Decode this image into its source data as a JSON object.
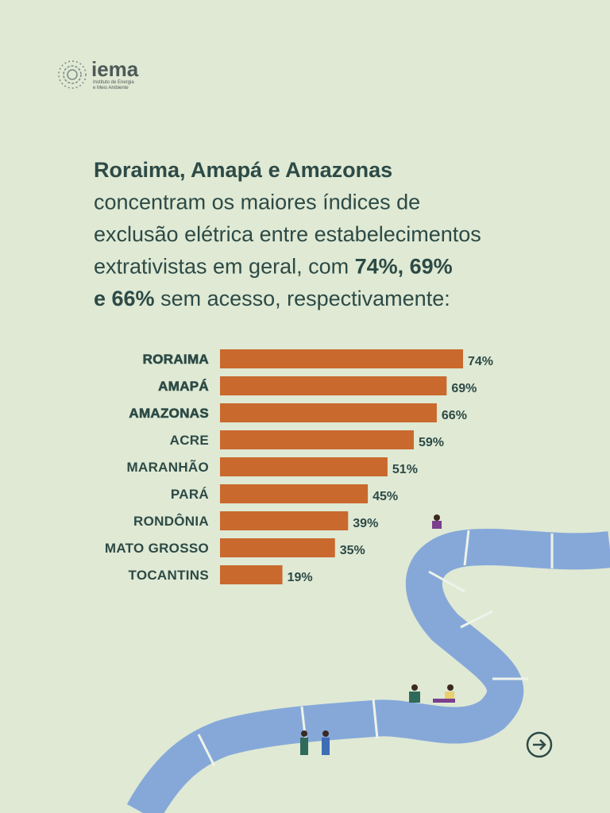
{
  "logo": {
    "name": "iema",
    "subtitle_lines": [
      "Instituto de Energia",
      "e Meio Ambiente"
    ]
  },
  "headline": [
    [
      {
        "text": "Roraima, Amapá e Amazonas",
        "bold": true
      }
    ],
    [
      {
        "text": "concentram os maiores índices de",
        "bold": false
      }
    ],
    [
      {
        "text": "exclusão elétrica entre estabelecimentos",
        "bold": false
      }
    ],
    [
      {
        "text": "extrativistas em geral, com ",
        "bold": false
      },
      {
        "text": "74%, 69%",
        "bold": true
      }
    ],
    [
      {
        "text": "e 66%",
        "bold": true
      },
      {
        "text": " sem acesso, respectivamente:",
        "bold": false
      }
    ]
  ],
  "chart_data": {
    "type": "bar",
    "orientation": "horizontal",
    "categories": [
      "RORAIMA",
      "AMAPÁ",
      "AMAZONAS",
      "ACRE",
      "MARANHÃO",
      "PARÁ",
      "RONDÔNIA",
      "MATO GROSSO",
      "TOCANTINS"
    ],
    "bold": [
      true,
      true,
      true,
      false,
      false,
      false,
      false,
      false,
      false
    ],
    "values": [
      74,
      69,
      66,
      59,
      51,
      45,
      39,
      35,
      19
    ],
    "value_labels": [
      "74%",
      "69%",
      "66%",
      "59%",
      "51%",
      "45%",
      "39%",
      "35%",
      "19%"
    ],
    "color": "#c9692d"
  }
}
